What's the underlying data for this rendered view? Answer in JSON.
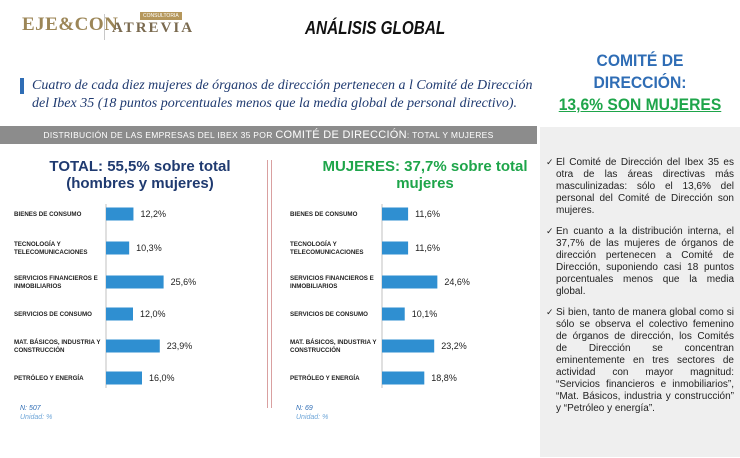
{
  "header": {
    "logo_left": "EJE&CON",
    "logo_right": "ATREVIA",
    "logo_right_tag": "CONSULTORIA",
    "title": "ANÁLISIS GLOBAL"
  },
  "headline": {
    "line1": "COMITÉ DE DIRECCIÓN:",
    "line2": "13,6% SON MUJERES"
  },
  "quote": "Cuatro de cada diez mujeres de órganos de dirección pertenecen a l Comité de Dirección del Ibex 35 (18 puntos porcentuales menos que la media global de personal directivo).",
  "band": {
    "prefix": "DISTRIBUCIÓN DE LAS EMPRESAS DEL IBEX 35 POR",
    "highlight": "COMITÉ DE DIRECCIÓN",
    "suffix": ": TOTAL Y MUJERES"
  },
  "chart_data": [
    {
      "type": "bar",
      "orientation": "horizontal",
      "title": "TOTAL: 55,5% sobre total (hombres y mujeres)",
      "categories": [
        "BIENES DE CONSUMO",
        "TECNOLOGÍA Y TELECOMUNICACIONES",
        "SERVICIOS FINANCIEROS E INMOBILIARIOS",
        "SERVICIOS DE CONSUMO",
        "MAT. BÁSICOS, INDUSTRIA Y CONSTRUCCIÓN",
        "PETRÓLEO Y ENERGÍA"
      ],
      "values": [
        12.2,
        10.3,
        25.6,
        12.0,
        23.9,
        16.0
      ],
      "value_labels": [
        "12,2%",
        "10,3%",
        "25,6%",
        "12,0%",
        "23,9%",
        "16,0%"
      ],
      "n_label": "N: 507",
      "unit_label": "Unidad: %",
      "bar_color": "#2f8fd1"
    },
    {
      "type": "bar",
      "orientation": "horizontal",
      "title": "MUJERES: 37,7% sobre total mujeres",
      "categories": [
        "BIENES DE CONSUMO",
        "TECNOLOGÍA Y TELECOMUNICACIONES",
        "SERVICIOS FINANCIEROS E INMOBILIARIOS",
        "SERVICIOS DE CONSUMO",
        "MAT. BÁSICOS, INDUSTRIA Y CONSTRUCCIÓN",
        "PETRÓLEO Y ENERGÍA"
      ],
      "values": [
        11.6,
        11.6,
        24.6,
        10.1,
        23.2,
        18.8
      ],
      "value_labels": [
        "11,6%",
        "11,6%",
        "24,6%",
        "10,1%",
        "23,2%",
        "18,8%"
      ],
      "n_label": "N: 69",
      "unit_label": "Unidad: %",
      "bar_color": "#2f8fd1"
    }
  ],
  "sidebar": {
    "bullets": [
      "El Comité de Dirección del Ibex 35 es otra de las áreas directivas más masculinizadas: sólo el 13,6% del personal del Comité de Dirección son mujeres.",
      "En cuanto a la distribución interna, el 37,7% de las mujeres de órganos de dirección pertenecen a Comité de Dirección, suponiendo casi 18 puntos porcentuales menos que la media global.",
      "Si bien, tanto de manera global como si sólo se observa el colectivo femenino de órganos de dirección, los Comités de Dirección se concentran eminentemente en tres sectores de actividad con mayor magnitud: “Servicios financieros e inmobiliarios”, “Mat. Básicos, industria y construcción” y “Petróleo y energía”."
    ]
  }
}
